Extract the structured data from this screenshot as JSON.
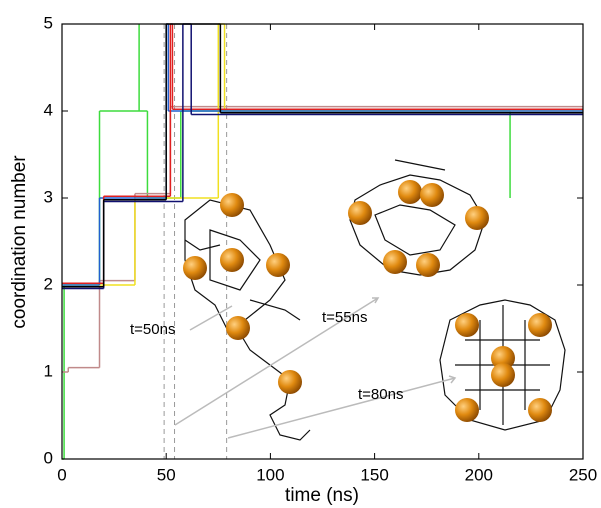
{
  "chart_data": {
    "type": "step",
    "x_label": "time (ns)",
    "y_label": "coordination number",
    "xlim": [
      0,
      250
    ],
    "xticks": [
      0,
      50,
      100,
      150,
      200,
      250
    ],
    "ylim": [
      0,
      5
    ],
    "yticks": [
      0,
      1,
      2,
      3,
      4,
      5
    ],
    "series": [
      {
        "color": "#3ddc3d",
        "x": [
          0,
          1,
          18,
          41,
          57,
          215
        ],
        "values": [
          0,
          2,
          4,
          3,
          4,
          3
        ]
      },
      {
        "color": "#3ddc3d",
        "x": [
          37,
          37
        ],
        "values": [
          4,
          5
        ]
      },
      {
        "color": "#c08a8a",
        "x": [
          0,
          3,
          18,
          35,
          52,
          250
        ],
        "values": [
          1,
          1.05,
          2.05,
          3.05,
          4.05,
          4.05
        ]
      },
      {
        "color": "#f0e020",
        "x": [
          0,
          35,
          52,
          75,
          78,
          250
        ],
        "values": [
          2,
          3,
          3,
          5,
          4,
          4
        ]
      },
      {
        "color": "#2060d0",
        "x": [
          0,
          18,
          50,
          51,
          250
        ],
        "values": [
          2,
          3,
          5,
          4,
          4
        ]
      },
      {
        "color": "#e02020",
        "x": [
          0,
          20,
          52,
          53,
          250
        ],
        "values": [
          2.02,
          3.02,
          5,
          4.02,
          4.02
        ]
      },
      {
        "color": "#101070",
        "x": [
          0,
          20,
          58,
          62,
          250
        ],
        "values": [
          1.96,
          2.96,
          5,
          3.96,
          3.96
        ]
      },
      {
        "color": "#000000",
        "x": [
          0,
          20,
          50,
          72,
          76,
          250
        ],
        "values": [
          1.98,
          2.98,
          5,
          5,
          3.98,
          3.98
        ]
      }
    ],
    "dashed_lines": [
      49,
      54,
      79
    ],
    "annotations": [
      "t=50ns",
      "t=55ns",
      "t=80ns"
    ]
  }
}
